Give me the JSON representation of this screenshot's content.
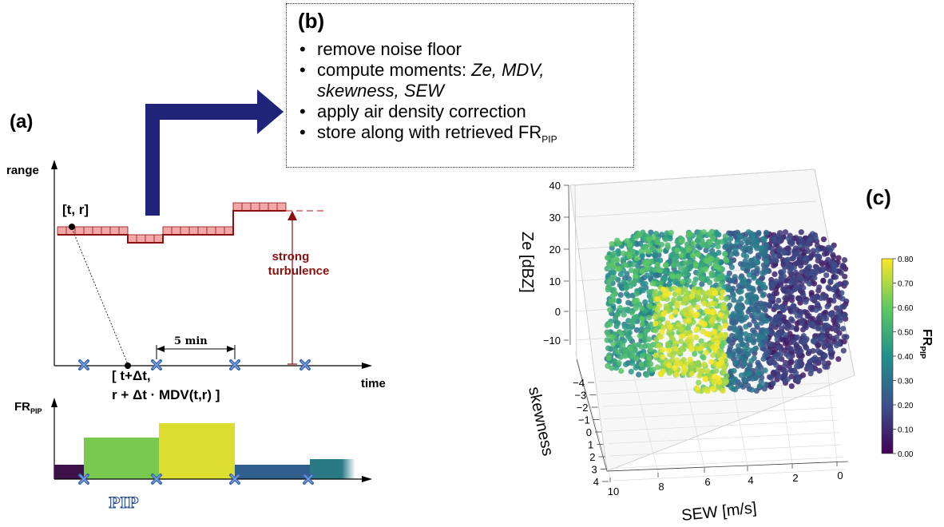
{
  "panel_a": {
    "label": "(a)",
    "y_axis_label": "range",
    "x_axis_label": "time",
    "point_label": "[t, r]",
    "annotation": [
      "strong",
      "turbulence"
    ],
    "interval_label": "5 min",
    "shifted_point_label": [
      "[ t+Δt,",
      "r + Δt · MDV(t,r) ]"
    ]
  },
  "fr_panel": {
    "y_label_main": "FR",
    "y_label_sub": "PIP",
    "x_label": "PIP",
    "bars": [
      {
        "fr": 0.02,
        "color": "#3d1248"
      },
      {
        "fr": 0.52,
        "color": "#7ac94f"
      },
      {
        "fr": 0.7,
        "color": "#dddd30"
      },
      {
        "fr": 0.18,
        "color": "#2f5f8d"
      },
      {
        "fr": 0.25,
        "color": "#2a7a86"
      }
    ]
  },
  "panel_b": {
    "label": "(b)",
    "items": [
      {
        "text": "remove noise floor"
      },
      {
        "text": "compute moments: ",
        "italic": "Ze, MDV,"
      },
      {
        "text": "",
        "italic": "skewness, SEW"
      },
      {
        "text": "apply air density correction"
      },
      {
        "text": "store along with retrieved FR",
        "sub": "PIP"
      }
    ]
  },
  "panel_c": {
    "label": "(c)",
    "z_axis_label": "Ze [dBZ]",
    "x_axis_label": "SEW [m/s]",
    "y_axis_label": "skewness",
    "z_ticks": [
      "40",
      "30",
      "20",
      "10",
      "0",
      "−10"
    ],
    "x_ticks": [
      "10",
      "8",
      "6",
      "4",
      "2",
      "0"
    ],
    "y_ticks": [
      "−4",
      "−3",
      "−2",
      "−1",
      "0",
      "1",
      "2",
      "3",
      "4"
    ],
    "colorbar_label_main": "FR",
    "colorbar_label_sub": "PIP",
    "colorbar_ticks": [
      "0.80",
      "0.70",
      "0.60",
      "0.50",
      "0.40",
      "0.30",
      "0.20",
      "0.10",
      "0.00"
    ],
    "colors": {
      "low": "#440154",
      "mid": "#21918c",
      "high": "#fde725"
    }
  }
}
